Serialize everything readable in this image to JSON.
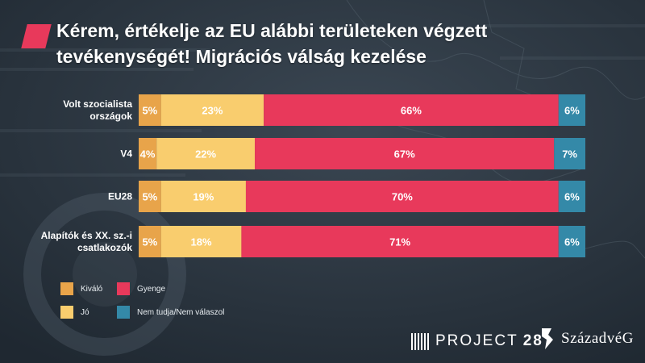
{
  "title": "Kérem, értékelje az EU alábbi területeken végzett tevékenységét! Migrációs válság kezelése",
  "colors": {
    "kivalo": "#e8a44a",
    "jo": "#f9cd6e",
    "gyenge": "#e8395b",
    "nem_tudja": "#3489a8",
    "accent": "#e8395b"
  },
  "chart_data": {
    "type": "bar",
    "orientation": "horizontal",
    "stacked": true,
    "percent_stacked": true,
    "categories": [
      [
        "Volt szocialista",
        "országok"
      ],
      [
        "V4"
      ],
      [
        "EU28"
      ],
      [
        "Alapítók és XX. sz.-i",
        "csatlakozók"
      ]
    ],
    "series": [
      {
        "name": "Kiváló",
        "color": "#e8a44a",
        "values": [
          5,
          4,
          5,
          5
        ]
      },
      {
        "name": "Jó",
        "color": "#f9cd6e",
        "values": [
          23,
          22,
          19,
          18
        ]
      },
      {
        "name": "Gyenge",
        "color": "#e8395b",
        "values": [
          66,
          67,
          70,
          71
        ]
      },
      {
        "name": "Nem tudja/Nem válaszol",
        "color": "#3489a8",
        "values": [
          6,
          7,
          6,
          6
        ]
      }
    ],
    "data_labels": [
      [
        "5%",
        "23%",
        "66%",
        "6%"
      ],
      [
        "4%",
        "22%",
        "67%",
        "7%"
      ],
      [
        "5%",
        "19%",
        "70%",
        "6%"
      ],
      [
        "5%",
        "18%",
        "71%",
        "6%"
      ]
    ],
    "legend": [
      {
        "label": "Kiváló",
        "color": "#e8a44a"
      },
      {
        "label": "Gyenge",
        "color": "#e8395b"
      },
      {
        "label": "Jó",
        "color": "#f9cd6e"
      },
      {
        "label": "Nem tudja/Nem válaszol",
        "color": "#3489a8"
      }
    ],
    "legend_position": "bottom-left",
    "grid": false
  },
  "footer": {
    "project_label": "PROJECT",
    "project_number": "28",
    "brand": "SzázadvéG"
  }
}
